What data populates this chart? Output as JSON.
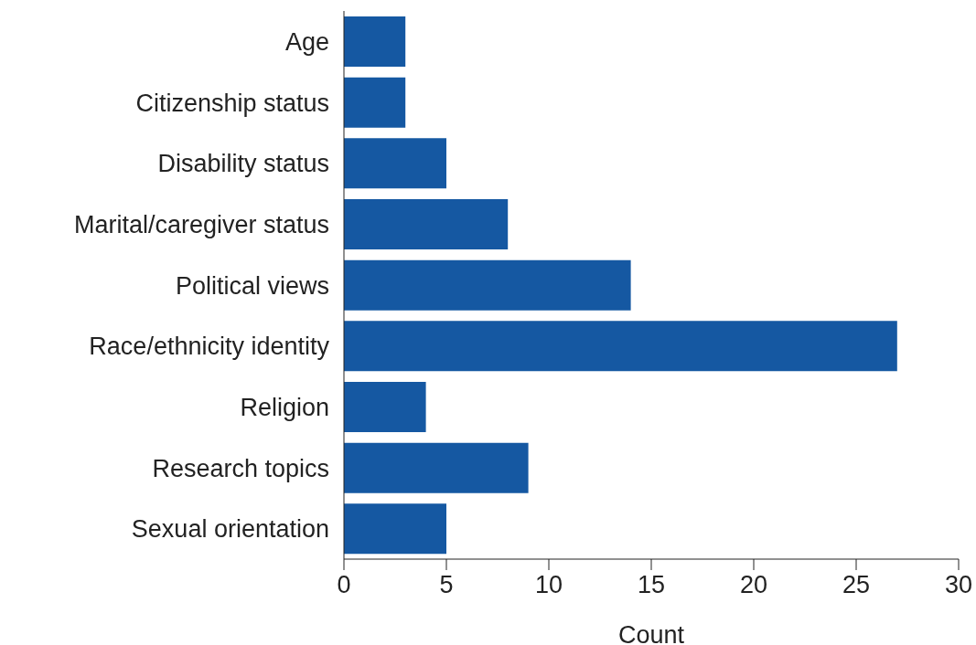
{
  "chart_data": {
    "type": "bar",
    "orientation": "horizontal",
    "xlabel": "Count",
    "categories": [
      "Age",
      "Citizenship status",
      "Disability status",
      "Marital/caregiver status",
      "Political views",
      "Race/ethnicity identity",
      "Religion",
      "Research topics",
      "Sexual orientation"
    ],
    "values": [
      3,
      3,
      5,
      8,
      14,
      27,
      4,
      9,
      5
    ],
    "color": "#1558a2",
    "xlim": [
      0,
      30
    ],
    "xticks": [
      0,
      5,
      10,
      15,
      20,
      25,
      30
    ],
    "grid": false,
    "legend": false
  }
}
